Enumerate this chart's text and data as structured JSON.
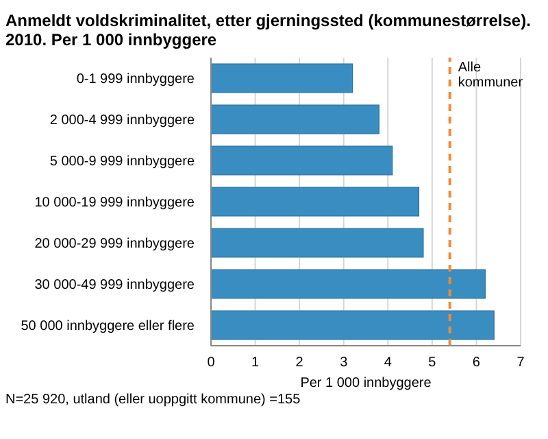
{
  "chart_data": {
    "type": "bar",
    "orientation": "horizontal",
    "title": "Anmeldt voldskriminalitet, etter gjerningssted (kommunestørrelse).",
    "subtitle": "2010. Per 1 000 innbyggere",
    "xlabel": "Per 1 000 innbyggere",
    "categories": [
      "0-1 999 innbyggere",
      "2 000-4 999 innbyggere",
      "5 000-9 999 innbyggere",
      "10 000-19 999 innbyggere",
      "20 000-29 999 innbyggere",
      "30 000-49 999 innbyggere",
      "50 000 innbyggere eller flere"
    ],
    "values": [
      3.2,
      3.8,
      4.1,
      4.7,
      4.8,
      6.2,
      6.4
    ],
    "color": "#3a8dc1",
    "xlim": [
      0,
      7
    ],
    "xticks": [
      0,
      1,
      2,
      3,
      4,
      5,
      6,
      7
    ],
    "grid": "x",
    "ref_lines": [
      {
        "axis": "x",
        "value": 5.4,
        "label": "Alle kommuner",
        "color": "#f28a30",
        "line_style": "dashed"
      }
    ],
    "annotations": [
      "N=25 920, utland (eller uoppgitt kommune) =155"
    ]
  }
}
